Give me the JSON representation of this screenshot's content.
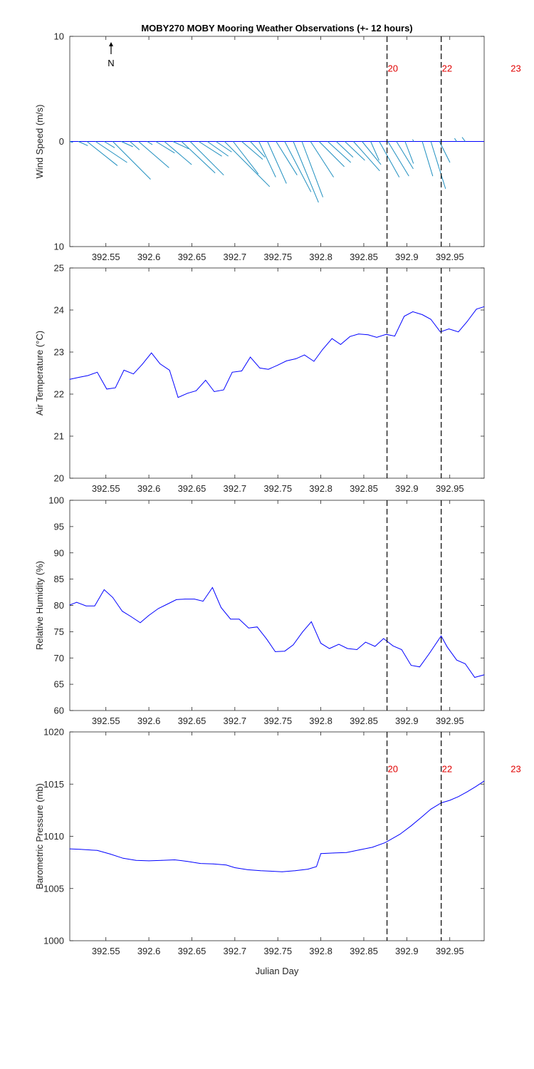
{
  "title": "MOBY270 MOBY Mooring Weather Observations (+- 12 hours)",
  "xlabel": "Julian Day",
  "north_label": "N",
  "colors": {
    "wind": "#1f8fbf",
    "line": "#0000ff",
    "annotation": "#e00000",
    "axis": "#262626"
  },
  "chart_data": [
    {
      "id": "wind",
      "type": "quiver",
      "ylabel": "Wind Speed (m/s)",
      "ylim": [
        -10,
        10
      ],
      "ytick_labels": [
        "10",
        "0",
        "10"
      ],
      "ytick_values": [
        10,
        0,
        -10
      ],
      "xlim": [
        392.508,
        392.99
      ],
      "xticks": [
        392.55,
        392.6,
        392.65,
        392.7,
        392.75,
        392.8,
        392.85,
        392.9,
        392.95
      ],
      "vlines": [
        392.877,
        392.94
      ],
      "annotations": [
        {
          "text": "20",
          "x": 392.877,
          "y": 7
        },
        {
          "text": "22",
          "x": 392.94,
          "y": 7
        },
        {
          "text": "23",
          "x": 393.02,
          "y": 7
        }
      ],
      "u": [
        0.3,
        0.9,
        2.9,
        3.0,
        1.0,
        3.6,
        1.1,
        0.9,
        2.9,
        0.5,
        1.8,
        2.6,
        1.5,
        3.2,
        3.2,
        2.2,
        2.0,
        1.5,
        4.3,
        2.4,
        2.0,
        1.4,
        1.6,
        1.8,
        2.0,
        2.5,
        2.4,
        2.0,
        2.2,
        2.4,
        2.2,
        1.6,
        1.9,
        2.5,
        1.8,
        0.8,
        1.9,
        2.0,
        1.6,
        0.8,
        -0.1,
        1.0,
        1.4,
        1.0,
        -0.2,
        -0.3,
        0.0
      ],
      "v": [
        -0.1,
        -0.4,
        -2.3,
        -2.0,
        -0.6,
        -3.6,
        -0.5,
        -0.8,
        -2.5,
        -0.3,
        -1.1,
        -2.2,
        -0.7,
        -3.0,
        -3.2,
        -1.4,
        -1.4,
        -1.0,
        -4.3,
        -3.1,
        -1.7,
        -1.5,
        -3.4,
        -4.0,
        -3.2,
        -4.8,
        -5.8,
        -5.3,
        -3.4,
        -2.4,
        -2.0,
        -1.5,
        -1.8,
        -2.8,
        -2.2,
        -1.8,
        -3.4,
        -3.3,
        -2.6,
        -2.1,
        0.2,
        -3.3,
        -4.5,
        -2.0,
        0.3,
        0.4,
        0.0
      ],
      "x": [
        392.508,
        392.518,
        392.528,
        392.538,
        392.548,
        392.558,
        392.568,
        392.578,
        392.588,
        392.598,
        392.608,
        392.618,
        392.628,
        392.638,
        392.648,
        392.658,
        392.668,
        392.678,
        392.688,
        392.698,
        392.708,
        392.718,
        392.728,
        392.738,
        392.748,
        392.758,
        392.768,
        392.778,
        392.788,
        392.798,
        392.808,
        392.818,
        392.828,
        392.838,
        392.848,
        392.858,
        392.868,
        392.878,
        392.888,
        392.898,
        392.908,
        392.918,
        392.928,
        392.938,
        392.958,
        392.968,
        392.99
      ]
    },
    {
      "id": "airtemp",
      "type": "line",
      "ylabel": "Air Temperature (°C)",
      "ylim": [
        20,
        25
      ],
      "yticks": [
        20,
        21,
        22,
        23,
        24,
        25
      ],
      "xlim": [
        392.508,
        392.99
      ],
      "xticks": [
        392.55,
        392.6,
        392.65,
        392.7,
        392.75,
        392.8,
        392.85,
        392.9,
        392.95
      ],
      "vlines": [
        392.877,
        392.94
      ],
      "series": [
        {
          "x": [
            392.508,
            392.519,
            392.529,
            392.54,
            392.551,
            392.561,
            392.571,
            392.582,
            392.592,
            392.603,
            392.613,
            392.624,
            392.634,
            392.645,
            392.655,
            392.666,
            392.676,
            392.687,
            392.697,
            392.708,
            392.718,
            392.729,
            392.739,
            392.75,
            392.76,
            392.771,
            392.781,
            392.792,
            392.802,
            392.813,
            392.823,
            392.834,
            392.844,
            392.855,
            392.865,
            392.876,
            392.886,
            392.897,
            392.907,
            392.918,
            392.928,
            392.939,
            392.949,
            392.96,
            392.97,
            392.981,
            392.99
          ],
          "y": [
            22.35,
            22.4,
            22.44,
            22.52,
            22.12,
            22.15,
            22.57,
            22.48,
            22.7,
            22.98,
            22.72,
            22.57,
            21.92,
            22.02,
            22.08,
            22.33,
            22.06,
            22.1,
            22.52,
            22.55,
            22.88,
            22.62,
            22.59,
            22.69,
            22.79,
            22.84,
            22.93,
            22.78,
            23.06,
            23.32,
            23.18,
            23.37,
            23.43,
            23.41,
            23.35,
            23.42,
            23.38,
            23.85,
            23.96,
            23.89,
            23.78,
            23.48,
            23.55,
            23.48,
            23.72,
            24.02,
            24.08
          ]
        }
      ]
    },
    {
      "id": "rh",
      "type": "line",
      "ylabel": "Relative Humidity (%)",
      "ylim": [
        60,
        100
      ],
      "yticks": [
        60,
        65,
        70,
        75,
        80,
        85,
        90,
        95,
        100
      ],
      "xlim": [
        392.508,
        392.99
      ],
      "xticks": [
        392.55,
        392.6,
        392.65,
        392.7,
        392.75,
        392.8,
        392.85,
        392.9,
        392.95
      ],
      "vlines": [
        392.877,
        392.94
      ],
      "series": [
        {
          "x": [
            392.508,
            392.516,
            392.527,
            392.537,
            392.548,
            392.558,
            392.569,
            392.579,
            392.59,
            392.6,
            392.611,
            392.621,
            392.632,
            392.642,
            392.653,
            392.663,
            392.674,
            392.684,
            392.695,
            392.705,
            392.716,
            392.726,
            392.737,
            392.747,
            392.758,
            392.768,
            392.779,
            392.789,
            392.8,
            392.81,
            392.821,
            392.831,
            392.842,
            392.852,
            392.863,
            392.873,
            392.884,
            392.894,
            392.905,
            392.915,
            392.926,
            392.94,
            392.947,
            392.958,
            392.968,
            392.979,
            392.99
          ],
          "y": [
            80.1,
            80.6,
            79.9,
            79.9,
            83.0,
            81.5,
            78.9,
            77.9,
            76.7,
            78.1,
            79.4,
            80.2,
            81.1,
            81.2,
            81.2,
            80.8,
            83.4,
            79.6,
            77.4,
            77.4,
            75.7,
            75.9,
            73.6,
            71.2,
            71.3,
            72.5,
            75.0,
            76.9,
            72.8,
            71.8,
            72.6,
            71.8,
            71.6,
            73.0,
            72.2,
            73.7,
            72.3,
            71.6,
            68.6,
            68.3,
            70.8,
            74.2,
            72.1,
            69.6,
            68.9,
            66.3,
            66.8
          ]
        }
      ]
    },
    {
      "id": "pressure",
      "type": "line",
      "ylabel": "Barometric Pressure (mb)",
      "ylim": [
        1000,
        1020
      ],
      "yticks": [
        1000,
        1005,
        1010,
        1015,
        1020
      ],
      "xlim": [
        392.508,
        392.99
      ],
      "xticks": [
        392.55,
        392.6,
        392.65,
        392.7,
        392.75,
        392.8,
        392.85,
        392.9,
        392.95
      ],
      "vlines": [
        392.877,
        392.94
      ],
      "annotations": [
        {
          "text": "20",
          "x": 392.877,
          "y": 1016.5
        },
        {
          "text": "22",
          "x": 392.94,
          "y": 1016.5
        },
        {
          "text": "23",
          "x": 393.02,
          "y": 1016.5
        }
      ],
      "series": [
        {
          "x": [
            392.508,
            392.52,
            392.54,
            392.555,
            392.57,
            392.585,
            392.6,
            392.615,
            392.63,
            392.645,
            392.66,
            392.675,
            392.69,
            392.7,
            392.715,
            392.73,
            392.745,
            392.755,
            392.77,
            392.785,
            392.795,
            392.8,
            392.815,
            392.83,
            392.845,
            392.86,
            392.875,
            392.892,
            392.905,
            392.918,
            392.928,
            392.94,
            392.95,
            392.96,
            392.97,
            392.98,
            392.99
          ],
          "y": [
            1008.8,
            1008.75,
            1008.65,
            1008.3,
            1007.9,
            1007.7,
            1007.65,
            1007.7,
            1007.75,
            1007.6,
            1007.4,
            1007.35,
            1007.25,
            1007.0,
            1006.8,
            1006.7,
            1006.65,
            1006.6,
            1006.7,
            1006.85,
            1007.1,
            1008.35,
            1008.4,
            1008.45,
            1008.7,
            1008.95,
            1009.4,
            1010.2,
            1011.0,
            1011.9,
            1012.6,
            1013.2,
            1013.45,
            1013.8,
            1014.25,
            1014.75,
            1015.3
          ]
        }
      ]
    }
  ]
}
